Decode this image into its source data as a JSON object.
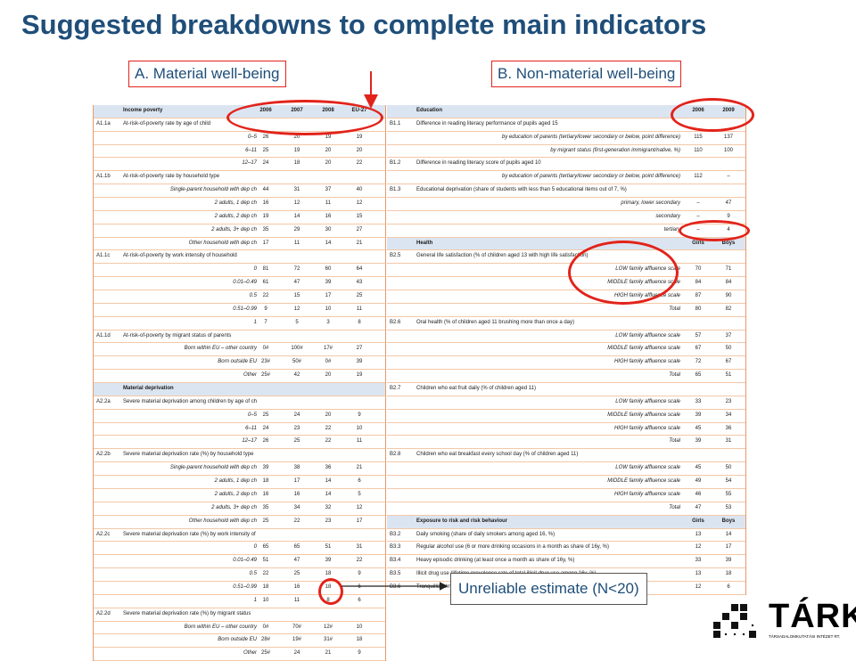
{
  "title": "Suggested breakdowns to complete main indicators",
  "labels": {
    "material": "A. Material well-being",
    "non_material": "B. Non-material well-being",
    "unreliable": "Unreliable estimate (N<20)"
  },
  "logo": {
    "name": "TÁRKI",
    "subtitle": "TÁRSADALOMKUTATÁSI INTÉZET RT."
  },
  "left_table": {
    "rows": [
      {
        "t": "h",
        "code": "",
        "label": "Income poverty",
        "v": [
          "2006",
          "2007",
          "2008",
          "EU-27"
        ]
      },
      {
        "t": "m",
        "code": "A1.1a",
        "label": "At-risk-of-poverty rate by age of child",
        "v": []
      },
      {
        "t": "s",
        "code": "",
        "label": "0–5",
        "v": [
          "26",
          "20",
          "19",
          "19"
        ]
      },
      {
        "t": "s",
        "code": "",
        "label": "6–11",
        "v": [
          "25",
          "19",
          "20",
          "20"
        ]
      },
      {
        "t": "s",
        "code": "",
        "label": "12–17",
        "v": [
          "24",
          "18",
          "20",
          "22"
        ]
      },
      {
        "t": "m",
        "code": "A1.1b",
        "label": "At-risk-of-poverty rate by household type",
        "v": []
      },
      {
        "t": "s",
        "code": "",
        "label": "Single-parent household with dep ch",
        "v": [
          "44",
          "31",
          "37",
          "40"
        ]
      },
      {
        "t": "s",
        "code": "",
        "label": "2 adults, 1 dep ch",
        "v": [
          "16",
          "12",
          "11",
          "12"
        ]
      },
      {
        "t": "s",
        "code": "",
        "label": "2 adults, 2 dep ch",
        "v": [
          "19",
          "14",
          "16",
          "15"
        ]
      },
      {
        "t": "s",
        "code": "",
        "label": "2 adults, 3+ dep ch",
        "v": [
          "35",
          "29",
          "30",
          "27"
        ]
      },
      {
        "t": "s",
        "code": "",
        "label": "Other household with dep ch",
        "v": [
          "17",
          "11",
          "14",
          "21"
        ]
      },
      {
        "t": "m",
        "code": "A1.1c",
        "label": "At-risk-of-poverty by work intensity of household",
        "v": []
      },
      {
        "t": "s",
        "code": "",
        "label": "0",
        "v": [
          "81",
          "72",
          "60",
          "64"
        ]
      },
      {
        "t": "s",
        "code": "",
        "label": "0.01–0.49",
        "v": [
          "61",
          "47",
          "39",
          "43"
        ]
      },
      {
        "t": "s",
        "code": "",
        "label": "0.5",
        "v": [
          "22",
          "15",
          "17",
          "25"
        ]
      },
      {
        "t": "s",
        "code": "",
        "label": "0.51–0.99",
        "v": [
          "9",
          "12",
          "10",
          "11"
        ]
      },
      {
        "t": "s",
        "code": "",
        "label": "1",
        "v": [
          "7",
          "5",
          "3",
          "8"
        ]
      },
      {
        "t": "m",
        "code": "A1.1d",
        "label": "At-risk-of-poverty by migrant status of parents",
        "v": []
      },
      {
        "t": "s",
        "code": "",
        "label": "Born within EU – other country",
        "v": [
          "0#",
          "100#",
          "17#",
          "27"
        ]
      },
      {
        "t": "s",
        "code": "",
        "label": "Born outside EU",
        "v": [
          "23#",
          "50#",
          "0#",
          "39"
        ]
      },
      {
        "t": "s",
        "code": "",
        "label": "Other",
        "v": [
          "25#",
          "42",
          "20",
          "19"
        ]
      },
      {
        "t": "h",
        "code": "",
        "label": "Material deprivation",
        "v": []
      },
      {
        "t": "m",
        "code": "A2.2a",
        "label": "Severe material deprivation among children by age of child",
        "v": []
      },
      {
        "t": "s",
        "code": "",
        "label": "0–5",
        "v": [
          "25",
          "24",
          "20",
          "9"
        ]
      },
      {
        "t": "s",
        "code": "",
        "label": "6–11",
        "v": [
          "24",
          "23",
          "22",
          "10"
        ]
      },
      {
        "t": "s",
        "code": "",
        "label": "12–17",
        "v": [
          "26",
          "25",
          "22",
          "11"
        ]
      },
      {
        "t": "m",
        "code": "A2.2b",
        "label": "Severe material deprivation rate (%) by household type",
        "v": []
      },
      {
        "t": "s",
        "code": "",
        "label": "Single-parent household with dep ch",
        "v": [
          "39",
          "38",
          "36",
          "21"
        ]
      },
      {
        "t": "s",
        "code": "",
        "label": "2 adults, 1 dep ch",
        "v": [
          "18",
          "17",
          "14",
          "6"
        ]
      },
      {
        "t": "s",
        "code": "",
        "label": "2 adults, 2 dep ch",
        "v": [
          "16",
          "16",
          "14",
          "5"
        ]
      },
      {
        "t": "s",
        "code": "",
        "label": "2 adults, 3+ dep ch",
        "v": [
          "35",
          "34",
          "32",
          "12"
        ]
      },
      {
        "t": "s",
        "code": "",
        "label": "Other household with dep ch",
        "v": [
          "25",
          "22",
          "23",
          "17"
        ]
      },
      {
        "t": "m",
        "code": "A2.2c",
        "label": "Severe material deprivation rate (%) by work intensity of household",
        "v": []
      },
      {
        "t": "s",
        "code": "",
        "label": "0",
        "v": [
          "65",
          "65",
          "51",
          "31"
        ]
      },
      {
        "t": "s",
        "code": "",
        "label": "0.01–0.49",
        "v": [
          "51",
          "47",
          "39",
          "22"
        ]
      },
      {
        "t": "s",
        "code": "",
        "label": "0.5",
        "v": [
          "22",
          "25",
          "18",
          "9"
        ]
      },
      {
        "t": "s",
        "code": "",
        "label": "0.51–0.99",
        "v": [
          "18",
          "16",
          "18",
          "6"
        ]
      },
      {
        "t": "s",
        "code": "",
        "label": "1",
        "v": [
          "10",
          "11",
          "8",
          "6"
        ]
      },
      {
        "t": "m",
        "code": "A2.2d",
        "label": "Severe material deprivation rate (%) by migrant status",
        "v": []
      },
      {
        "t": "s",
        "code": "",
        "label": "Born within EU – other country",
        "v": [
          "0#",
          "70#",
          "12#",
          "10"
        ]
      },
      {
        "t": "s",
        "code": "",
        "label": "Born outside EU",
        "v": [
          "28#",
          "19#",
          "31#",
          "18"
        ]
      },
      {
        "t": "s",
        "code": "",
        "label": "Other",
        "v": [
          "25#",
          "24",
          "21",
          "9"
        ]
      }
    ]
  },
  "right_table": {
    "rows": [
      {
        "t": "h",
        "code": "",
        "label": "Education",
        "v": [
          "2006",
          "2009"
        ]
      },
      {
        "t": "m",
        "code": "B1.1",
        "label": "Difference in reading literacy performance of pupils aged 15",
        "v": []
      },
      {
        "t": "s",
        "code": "",
        "label": "by education of parents (tertiary/lower secondary or below, point difference)",
        "v": [
          "115",
          "137"
        ]
      },
      {
        "t": "s",
        "code": "",
        "label": "by migrant status (first-generation immigrant/native, %)",
        "v": [
          "110",
          "100"
        ]
      },
      {
        "t": "m",
        "code": "B1.2",
        "label": "Difference in reading literacy score of pupils aged 10",
        "v": []
      },
      {
        "t": "s",
        "code": "",
        "label": "by education of parents (tertiary/lower secondary or below, point difference)",
        "v": [
          "112",
          "–"
        ]
      },
      {
        "t": "m",
        "code": "B1.3",
        "label": "Educational deprivation (share of students with less than 5 educational items out of 7, %)",
        "v": []
      },
      {
        "t": "s",
        "code": "",
        "label": "primary, lower secondary",
        "v": [
          "–",
          "47"
        ]
      },
      {
        "t": "s",
        "code": "",
        "label": "secondary",
        "v": [
          "–",
          "9"
        ]
      },
      {
        "t": "s",
        "code": "",
        "label": "tertiary",
        "v": [
          "–",
          "4"
        ]
      },
      {
        "t": "h",
        "code": "",
        "label": "Health",
        "v": [
          "Girls",
          "Boys"
        ]
      },
      {
        "t": "m",
        "code": "B2.5",
        "label": "General life satisfaction (% of children aged 13 with high life satisfaction)",
        "v": []
      },
      {
        "t": "s",
        "code": "",
        "label": "LOW family affluence scale",
        "v": [
          "70",
          "71"
        ]
      },
      {
        "t": "s",
        "code": "",
        "label": "MIDDLE family affluence scale",
        "v": [
          "84",
          "84"
        ]
      },
      {
        "t": "s",
        "code": "",
        "label": "HIGH family affluence scale",
        "v": [
          "87",
          "90"
        ]
      },
      {
        "t": "s",
        "code": "",
        "label": "Total",
        "v": [
          "80",
          "82"
        ]
      },
      {
        "t": "m",
        "code": "B2.6",
        "label": "Oral health (% of children aged 11 brushing more than once a day)",
        "v": []
      },
      {
        "t": "s",
        "code": "",
        "label": "LOW family affluence scale",
        "v": [
          "57",
          "37"
        ]
      },
      {
        "t": "s",
        "code": "",
        "label": "MIDDLE family affluence scale",
        "v": [
          "67",
          "50"
        ]
      },
      {
        "t": "s",
        "code": "",
        "label": "HIGH family affluence scale",
        "v": [
          "72",
          "67"
        ]
      },
      {
        "t": "s",
        "code": "",
        "label": "Total",
        "v": [
          "65",
          "51"
        ]
      },
      {
        "t": "m",
        "code": "B2.7",
        "label": "Children who eat fruit daily (% of children aged 11)",
        "v": []
      },
      {
        "t": "s",
        "code": "",
        "label": "LOW family affluence scale",
        "v": [
          "33",
          "23"
        ]
      },
      {
        "t": "s",
        "code": "",
        "label": "MIDDLE family affluence scale",
        "v": [
          "39",
          "34"
        ]
      },
      {
        "t": "s",
        "code": "",
        "label": "HIGH family affluence scale",
        "v": [
          "45",
          "36"
        ]
      },
      {
        "t": "s",
        "code": "",
        "label": "Total",
        "v": [
          "39",
          "31"
        ]
      },
      {
        "t": "m",
        "code": "B2.8",
        "label": "Children who eat breakfast every school day (% of children aged 11)",
        "v": []
      },
      {
        "t": "s",
        "code": "",
        "label": "LOW family affluence scale",
        "v": [
          "45",
          "50"
        ]
      },
      {
        "t": "s",
        "code": "",
        "label": "MIDDLE family affluence scale",
        "v": [
          "49",
          "54"
        ]
      },
      {
        "t": "s",
        "code": "",
        "label": "HIGH family affluence scale",
        "v": [
          "46",
          "55"
        ]
      },
      {
        "t": "s",
        "code": "",
        "label": "Total",
        "v": [
          "47",
          "53"
        ]
      },
      {
        "t": "h",
        "code": "",
        "label": "Exposure to risk and risk behaviour",
        "v": [
          "Girls",
          "Boys"
        ]
      },
      {
        "t": "m",
        "code": "B3.2",
        "label": "Daily smoking (share of daily smokers among aged 16, %)",
        "v": [
          "13",
          "14"
        ]
      },
      {
        "t": "m",
        "code": "B3.3",
        "label": "Regular alcohol use (6 or more drinking occasions in a month as share of 16y, %)",
        "v": [
          "12",
          "17"
        ]
      },
      {
        "t": "m",
        "code": "B3.4",
        "label": "Heavy episodic drinking (at least once a month as share of 16y, %)",
        "v": [
          "33",
          "39"
        ]
      },
      {
        "t": "m",
        "code": "B3.5",
        "label": "Illicit drug use (lifetime prevalence rate of total illicit drug use among 16y, %)",
        "v": [
          "13",
          "18"
        ]
      },
      {
        "t": "m",
        "code": "B3.6",
        "label": "Tranquillizer/medicine use w/out doctor's orders (lifetime prevalence rate among 16y, %)",
        "v": [
          "12",
          "6"
        ]
      }
    ]
  }
}
